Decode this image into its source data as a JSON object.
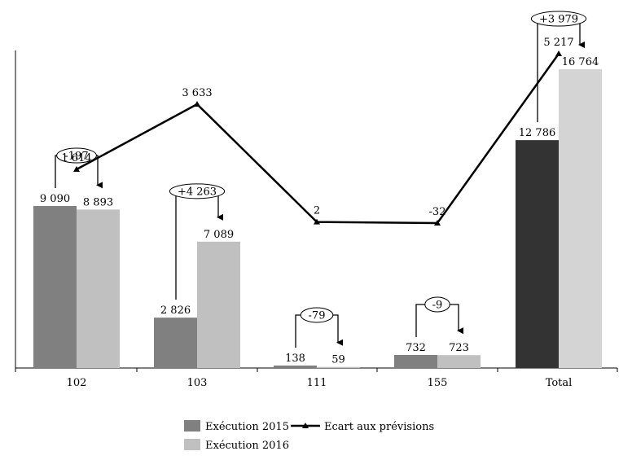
{
  "chart_data": {
    "type": "bar",
    "categories": [
      "102",
      "103",
      "111",
      "155",
      "Total"
    ],
    "series": [
      {
        "name": "Exécution 2015",
        "values": [
          9090,
          2826,
          138,
          732,
          12786
        ],
        "labels": [
          "9 090",
          "2 826",
          "138",
          "732",
          "12 786"
        ],
        "color": "#808080",
        "total_color": "#333333"
      },
      {
        "name": "Exécution 2016",
        "values": [
          8893,
          7089,
          59,
          723,
          16764
        ],
        "labels": [
          "8 893",
          "7 089",
          "59",
          "723",
          "16 764"
        ],
        "color": "#c0c0c0",
        "total_color": "#d4d4d4"
      }
    ],
    "line": {
      "name": "Ecart aux prévisions",
      "values": [
        1614,
        3633,
        2,
        -32,
        5217
      ],
      "labels": [
        "1 614",
        "3 633",
        "2",
        "-32",
        "5 217"
      ],
      "color": "#000000"
    },
    "variances": [
      "-197",
      "+4 263",
      "-79",
      "-9",
      "+3 979"
    ],
    "bar_ylim": [
      0,
      18000
    ],
    "line_ylim": [
      -1000,
      7000
    ],
    "legend_position": "bottom-left",
    "grid": false
  }
}
